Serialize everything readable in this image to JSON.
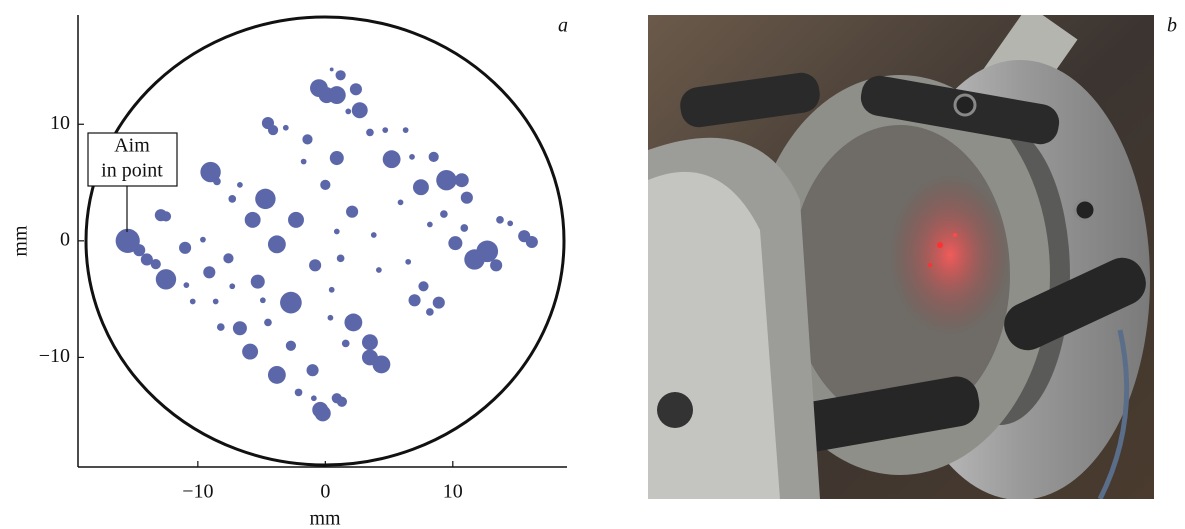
{
  "chart_data": {
    "type": "scatter",
    "panel_label": "a",
    "xlabel": "mm",
    "ylabel": "mm",
    "annotation": [
      "Aim",
      "in point"
    ],
    "xlim": [
      -19.4,
      18.8
    ],
    "ylim": [
      -19.4,
      19.2
    ],
    "xticks": [
      {
        "value": -10,
        "label": "−10"
      },
      0,
      10
    ],
    "yticks": [
      {
        "value": -10,
        "label": "−10"
      },
      0,
      10
    ],
    "color": "#5b67a9",
    "x": [
      -15.5,
      -14.6,
      -14.0,
      -13.3,
      -12.5,
      -12.9,
      -12.5,
      -11.0,
      -10.9,
      -10.4,
      -9.6,
      -9.0,
      -8.5,
      -9.1,
      -8.6,
      -8.2,
      -7.6,
      -7.3,
      -7.3,
      -6.7,
      -6.7,
      -5.9,
      -5.7,
      -5.3,
      -4.7,
      -4.5,
      -4.1,
      -3.8,
      -4.9,
      -4.5,
      -3.8,
      -3.1,
      -2.7,
      -2.7,
      -2.3,
      -1.4,
      -1.7,
      -2.1,
      -1.0,
      -0.8,
      0,
      0.9,
      -0.5,
      0.1,
      0.9,
      1.2,
      0.5,
      2.4,
      2.7,
      1.8,
      2.1,
      0.9,
      1.2,
      0.5,
      0.4,
      2.2,
      1.6,
      3.5,
      3.5,
      4.4,
      -0.9,
      -0.4,
      -0.2,
      0.9,
      1.3,
      3.5,
      4.7,
      5.2,
      6.3,
      3.8,
      4.2,
      5.9,
      6.5,
      6.8,
      7.5,
      8.2,
      8.5,
      7.0,
      7.7,
      8.9,
      8.2,
      9.5,
      10.7,
      11.1,
      9.3,
      10.2,
      10.9,
      12.7,
      11.7,
      13.4,
      13.7,
      14.5,
      15.6,
      16.2
    ],
    "values": [
      0,
      -0.8,
      -1.6,
      -2.0,
      -3.3,
      2.2,
      2.1,
      -0.6,
      -3.8,
      -5.2,
      0.1,
      5.9,
      5.1,
      -2.7,
      -5.2,
      -7.4,
      -1.5,
      -3.9,
      3.6,
      4.8,
      -7.5,
      -9.5,
      1.8,
      -3.5,
      3.6,
      10.1,
      9.5,
      -0.3,
      -5.1,
      -7.0,
      -11.5,
      9.7,
      -9.0,
      -5.3,
      1.8,
      8.7,
      6.8,
      -13.0,
      -11.1,
      -2.1,
      4.8,
      7.1,
      13.1,
      12.5,
      12.5,
      14.2,
      14.7,
      13.0,
      11.2,
      11.1,
      2.5,
      0.8,
      -1.5,
      -4.2,
      -6.6,
      -7.0,
      -8.8,
      -8.7,
      -10.0,
      -10.6,
      -13.5,
      -14.5,
      -14.8,
      -13.5,
      -13.8,
      9.3,
      9.5,
      7.0,
      9.5,
      0.5,
      -2.5,
      3.3,
      -1.8,
      7.2,
      4.6,
      1.4,
      7.2,
      -5.1,
      -3.9,
      -5.3,
      -6.1,
      5.2,
      5.2,
      3.7,
      2.3,
      -0.2,
      1.1,
      -0.9,
      -1.6,
      -2.1,
      1.8,
      1.5,
      0.4,
      -0.1
    ],
    "sizes": [
      1.9,
      0.95,
      0.95,
      0.8,
      1.6,
      0.95,
      0.8,
      0.95,
      0.45,
      0.45,
      0.45,
      1.6,
      0.6,
      0.95,
      0.45,
      0.6,
      0.8,
      0.45,
      0.6,
      0.45,
      1.1,
      1.25,
      1.25,
      1.1,
      1.6,
      0.95,
      0.8,
      1.4,
      0.45,
      0.6,
      1.4,
      0.45,
      0.8,
      1.7,
      1.25,
      0.8,
      0.45,
      0.6,
      0.95,
      0.95,
      0.8,
      1.1,
      1.4,
      1.25,
      1.4,
      0.8,
      0.3,
      0.95,
      1.25,
      0.45,
      0.95,
      0.45,
      0.6,
      0.45,
      0.45,
      1.4,
      0.6,
      1.25,
      1.25,
      1.4,
      0.45,
      1.25,
      1.25,
      0.8,
      0.8,
      0.6,
      0.45,
      1.4,
      0.45,
      0.45,
      0.45,
      0.45,
      0.45,
      0.45,
      1.25,
      0.45,
      0.8,
      0.95,
      0.8,
      0.95,
      0.6,
      1.6,
      1.1,
      0.95,
      0.6,
      1.1,
      0.6,
      1.7,
      1.6,
      0.95,
      0.6,
      0.45,
      0.95,
      0.95
    ]
  },
  "photo": {
    "panel_label": "b"
  }
}
